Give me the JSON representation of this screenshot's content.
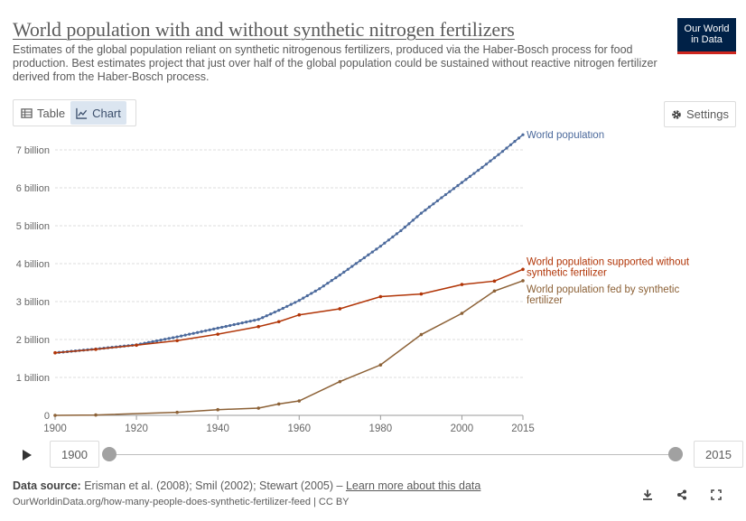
{
  "header": {
    "title": "World population with and without synthetic nitrogen fertilizers",
    "subtitle": "Estimates of the global population reliant on synthetic nitrogenous fertilizers, produced via the Haber-Bosch process for food production. Best estimates project that just over half of the global population could be sustained without reactive nitrogen fertilizer derived from the Haber-Bosch process.",
    "logo_line1": "Our World",
    "logo_line2": "in Data"
  },
  "tabs": [
    {
      "label": "Table",
      "icon": "table-icon",
      "active": false
    },
    {
      "label": "Chart",
      "icon": "line-chart-icon",
      "active": true
    }
  ],
  "settings_label": "Settings",
  "timeline": {
    "start_year": "1900",
    "end_year": "2015"
  },
  "footer": {
    "source_label": "Data source:",
    "source_text": "Erisman et al. (2008); Smil (2002); Stewart (2005) –",
    "learn_more": "Learn more about this data",
    "url": "OurWorldinData.org/how-many-people-does-synthetic-fertilizer-feed | CC BY"
  },
  "colors": {
    "world_population": "#4c6a9c",
    "without_fertilizer": "#b13507",
    "fed_by_fertilizer": "#8c6136",
    "grid": "#dddddd"
  },
  "chart_data": {
    "type": "line",
    "xlim": [
      1900,
      2015
    ],
    "ylim": [
      0,
      7500000000
    ],
    "x_ticks": [
      "1900",
      "1920",
      "1940",
      "1960",
      "1980",
      "2000",
      "2015"
    ],
    "y_ticks": [
      {
        "value": 0,
        "label": "0"
      },
      {
        "value": 1000000000,
        "label": "1 billion"
      },
      {
        "value": 2000000000,
        "label": "2 billion"
      },
      {
        "value": 3000000000,
        "label": "3 billion"
      },
      {
        "value": 4000000000,
        "label": "4 billion"
      },
      {
        "value": 5000000000,
        "label": "5 billion"
      },
      {
        "value": 6000000000,
        "label": "6 billion"
      },
      {
        "value": 7000000000,
        "label": "7 billion"
      }
    ],
    "grid": true,
    "series": [
      {
        "name": "World population",
        "label_lines": [
          "World population"
        ],
        "color": "#4c6a9c",
        "dense_markers": true,
        "x": [
          1900,
          1910,
          1920,
          1930,
          1940,
          1950,
          1955,
          1960,
          1965,
          1970,
          1975,
          1980,
          1985,
          1990,
          1995,
          2000,
          2005,
          2010,
          2015
        ],
        "y": [
          1650000000,
          1750000000,
          1860000000,
          2070000000,
          2300000000,
          2530000000,
          2770000000,
          3030000000,
          3340000000,
          3700000000,
          4080000000,
          4460000000,
          4870000000,
          5330000000,
          5740000000,
          6140000000,
          6540000000,
          6960000000,
          7400000000
        ]
      },
      {
        "name": "World population supported without synthetic fertilizer",
        "label_lines": [
          "World population supported without",
          "synthetic fertilizer"
        ],
        "color": "#b13507",
        "dense_markers": false,
        "x": [
          1900,
          1910,
          1920,
          1930,
          1940,
          1950,
          1955,
          1960,
          1970,
          1980,
          1990,
          2000,
          2008,
          2015
        ],
        "y": [
          1650000000,
          1740000000,
          1850000000,
          1970000000,
          2140000000,
          2340000000,
          2470000000,
          2650000000,
          2810000000,
          3130000000,
          3200000000,
          3450000000,
          3540000000,
          3850000000
        ]
      },
      {
        "name": "World population fed by synthetic fertilizer",
        "label_lines": [
          "World population fed by synthetic",
          "fertilizer"
        ],
        "color": "#8c6136",
        "dense_markers": false,
        "x": [
          1900,
          1910,
          1930,
          1940,
          1950,
          1955,
          1960,
          1970,
          1980,
          1990,
          2000,
          2008,
          2015
        ],
        "y": [
          0,
          10000000,
          80000000,
          150000000,
          190000000,
          300000000,
          380000000,
          890000000,
          1330000000,
          2130000000,
          2690000000,
          3280000000,
          3550000000
        ]
      }
    ]
  }
}
